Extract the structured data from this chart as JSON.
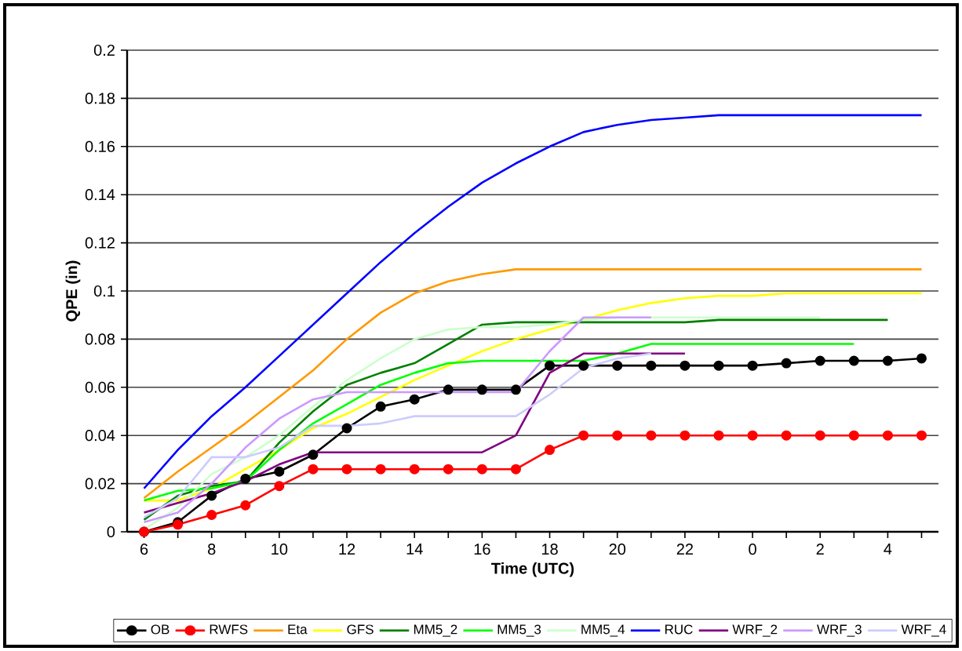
{
  "chart_data": {
    "type": "line",
    "xlabel": "Time (UTC)",
    "ylabel": "QPE (in)",
    "categories": [
      "6",
      null,
      "8",
      null,
      "10",
      null,
      "12",
      null,
      "14",
      null,
      "16",
      null,
      "18",
      null,
      "20",
      null,
      "22",
      null,
      "0",
      null,
      "2",
      null,
      "4",
      null
    ],
    "ylim": [
      0,
      0.2
    ],
    "yticks": [
      0,
      0.02,
      0.04,
      0.06,
      0.08,
      0.1,
      0.12,
      0.14,
      0.16,
      0.18,
      0.2
    ],
    "grid": "y",
    "legend": "bottom",
    "series": [
      {
        "name": "OB",
        "color": "#000000",
        "marker": "circle",
        "values": [
          0,
          0.004,
          0.015,
          0.022,
          0.025,
          0.032,
          0.043,
          0.052,
          0.055,
          0.059,
          0.059,
          0.059,
          0.069,
          0.069,
          0.069,
          0.069,
          0.069,
          0.069,
          0.069,
          0.07,
          0.071,
          0.071,
          0.071,
          0.072
        ]
      },
      {
        "name": "RWFS",
        "color": "#ff0000",
        "marker": "circle",
        "values": [
          0,
          0.003,
          0.007,
          0.011,
          0.019,
          0.026,
          0.026,
          0.026,
          0.026,
          0.026,
          0.026,
          0.026,
          0.034,
          0.04,
          0.04,
          0.04,
          0.04,
          0.04,
          0.04,
          0.04,
          0.04,
          0.04,
          0.04,
          0.04
        ]
      },
      {
        "name": "Eta",
        "color": "#ff9900",
        "values": [
          0.014,
          0.025,
          0.035,
          0.045,
          0.056,
          0.067,
          0.08,
          0.091,
          0.099,
          0.104,
          0.107,
          0.109,
          0.109,
          0.109,
          0.109,
          0.109,
          0.109,
          0.109,
          0.109,
          0.109,
          0.109,
          0.109,
          0.109,
          0.109
        ]
      },
      {
        "name": "GFS",
        "color": "#ffff00",
        "values": [
          0.013,
          0.013,
          0.018,
          0.026,
          0.034,
          0.043,
          0.049,
          0.056,
          0.063,
          0.069,
          0.075,
          0.08,
          0.084,
          0.088,
          0.092,
          0.095,
          0.097,
          0.098,
          0.098,
          0.099,
          0.099,
          0.099,
          0.099,
          0.099
        ]
      },
      {
        "name": "MM5_2",
        "color": "#008000",
        "values": [
          0.005,
          0.015,
          0.019,
          0.021,
          0.037,
          0.05,
          0.061,
          0.066,
          0.07,
          0.078,
          0.086,
          0.087,
          0.087,
          0.087,
          0.087,
          0.087,
          0.087,
          0.088,
          0.088,
          0.088,
          0.088,
          0.088,
          0.088,
          null
        ]
      },
      {
        "name": "MM5_3",
        "color": "#00ff00",
        "values": [
          0.013,
          0.017,
          0.018,
          0.021,
          0.034,
          0.045,
          0.053,
          0.061,
          0.066,
          0.07,
          0.071,
          0.071,
          0.071,
          0.071,
          0.074,
          0.078,
          0.078,
          0.078,
          0.078,
          0.078,
          0.078,
          0.078,
          null,
          null
        ]
      },
      {
        "name": "MM5_4",
        "color": "#ccffcc",
        "values": [
          0.001,
          0.01,
          0.024,
          0.031,
          0.04,
          0.052,
          0.063,
          0.072,
          0.08,
          0.084,
          0.085,
          0.085,
          0.086,
          0.088,
          0.089,
          0.089,
          0.089,
          0.089,
          0.089,
          0.089,
          0.089,
          null,
          null,
          null
        ]
      },
      {
        "name": "RUC",
        "color": "#0000ff",
        "values": [
          0.018,
          0.034,
          0.048,
          0.06,
          0.073,
          0.086,
          0.099,
          0.112,
          0.124,
          0.135,
          0.145,
          0.153,
          0.16,
          0.166,
          0.169,
          0.171,
          0.172,
          0.173,
          0.173,
          0.173,
          0.173,
          0.173,
          0.173,
          0.173
        ]
      },
      {
        "name": "WRF_2",
        "color": "#800080",
        "values": [
          0.008,
          0.012,
          0.016,
          0.021,
          0.028,
          0.033,
          0.033,
          0.033,
          0.033,
          0.033,
          0.033,
          0.04,
          0.066,
          0.074,
          0.074,
          0.074,
          0.074,
          null,
          null,
          null,
          null,
          null,
          null,
          null
        ]
      },
      {
        "name": "WRF_3",
        "color": "#cc99ff",
        "values": [
          0.004,
          0.008,
          0.02,
          0.035,
          0.047,
          0.055,
          0.058,
          0.058,
          0.058,
          0.058,
          0.058,
          0.058,
          0.075,
          0.089,
          0.089,
          0.089,
          null,
          null,
          null,
          null,
          null,
          null,
          null,
          null
        ]
      },
      {
        "name": "WRF_4",
        "color": "#ccccff",
        "values": [
          0.006,
          0.014,
          0.031,
          0.031,
          0.035,
          0.044,
          0.044,
          0.045,
          0.048,
          0.048,
          0.048,
          0.048,
          0.057,
          0.068,
          0.072,
          0.074,
          null,
          null,
          null,
          null,
          null,
          null,
          null,
          null
        ]
      }
    ]
  }
}
